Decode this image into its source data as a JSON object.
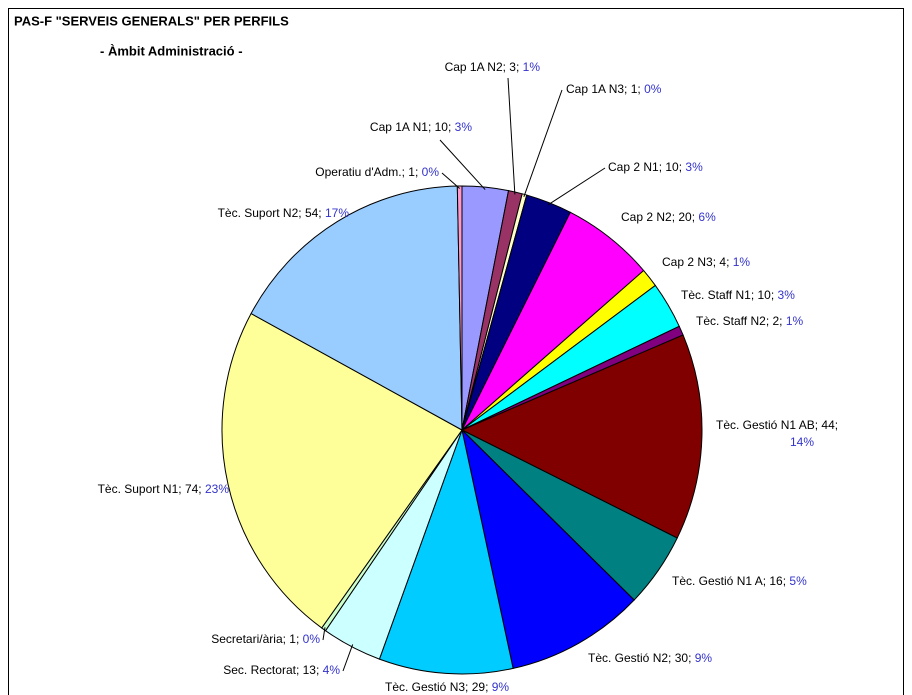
{
  "chart_data": {
    "type": "pie",
    "title": "PAS-F \"SERVEIS GENERALS\" PER PERFILS",
    "subtitle": "- Àmbit Administració -",
    "separator": "; ",
    "percent_color": "#3333cc",
    "categories": [
      "Cap 1A N1",
      "Cap 1A N2",
      "Cap 1A N3",
      "Cap 2 N1",
      "Cap 2 N2",
      "Cap 2 N3",
      "Tèc. Staff N1",
      "Tèc. Staff N2",
      "Tèc. Gestió N1 AB",
      "Tèc. Gestió N1 A",
      "Tèc. Gestió N2",
      "Tèc. Gestió N3",
      "Sec. Rectorat",
      "Secretari/ària",
      "Tèc. Suport N1",
      "Tèc. Suport N2",
      "Operatiu d'Adm."
    ],
    "values": [
      10,
      3,
      1,
      10,
      20,
      4,
      10,
      2,
      44,
      16,
      30,
      29,
      13,
      1,
      74,
      54,
      1
    ],
    "percent_labels": [
      "3%",
      "1%",
      "0%",
      "3%",
      "6%",
      "1%",
      "3%",
      "1%",
      "14%",
      "5%",
      "9%",
      "9%",
      "4%",
      "0%",
      "23%",
      "17%",
      "0%"
    ],
    "colors": [
      "#9999ff",
      "#993366",
      "#ffffcc",
      "#000080",
      "#ff00ff",
      "#ffff00",
      "#00ffff",
      "#800080",
      "#800000",
      "#008080",
      "#0000ff",
      "#00ccff",
      "#ccffff",
      "#ccffcc",
      "#ffff99",
      "#99ccff",
      "#ff99cc"
    ]
  }
}
